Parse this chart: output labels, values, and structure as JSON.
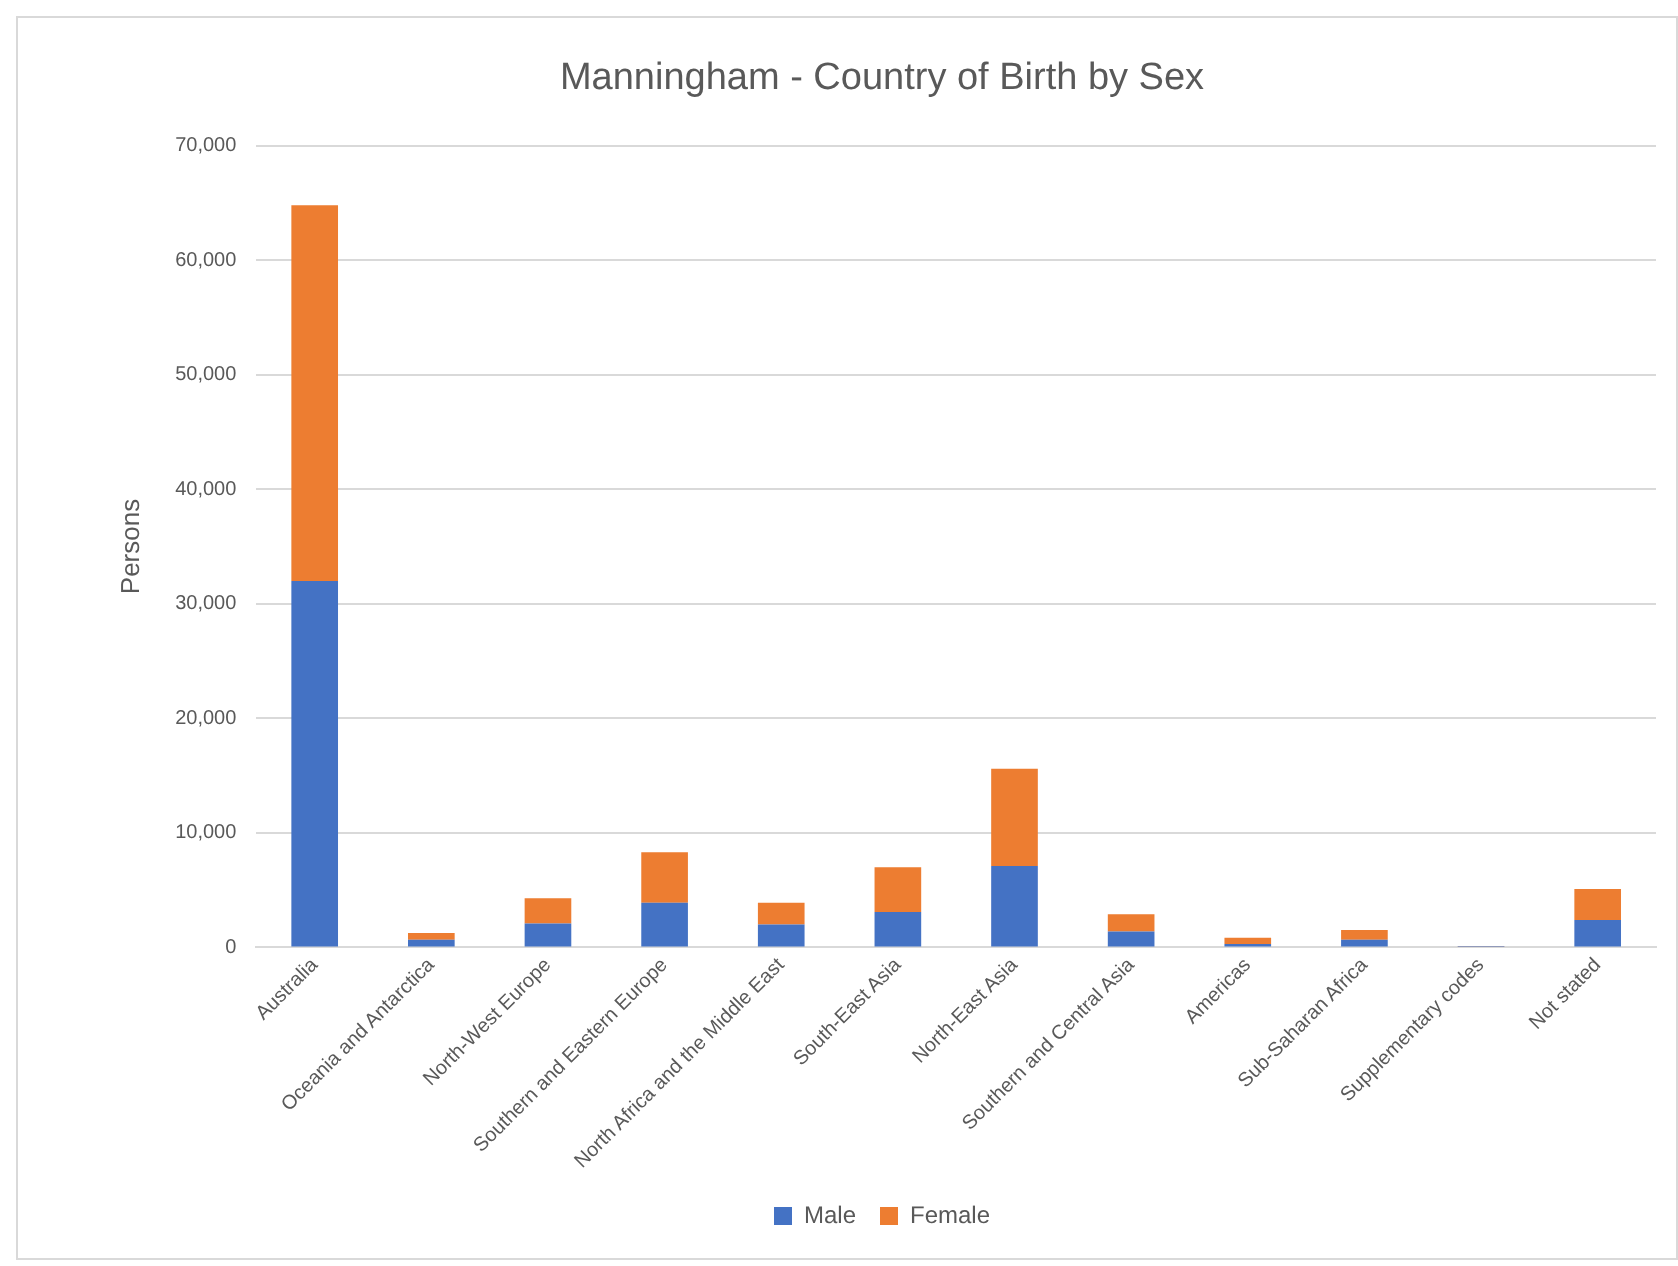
{
  "chart_data": {
    "type": "bar",
    "title": "Manningham - Country of Birth by Sex",
    "ylabel": "Persons",
    "stacked": true,
    "grid": "y",
    "legend": "bottom",
    "categories": [
      "Australia",
      "Oceania and Antarctica",
      "North-West Europe",
      "Southern and Eastern Europe",
      "North Africa and the Middle East",
      "South-East Asia",
      "North-East Asia",
      "Southern and Central Asia",
      "Americas",
      "Sub-Saharan Africa",
      "Supplementary codes",
      "Not stated"
    ],
    "series": [
      {
        "name": "Male",
        "color": "#4472c4",
        "values": [
          32000,
          670,
          2100,
          3900,
          2000,
          3100,
          7100,
          1400,
          300,
          670,
          30,
          2400
        ]
      },
      {
        "name": "Female",
        "color": "#ed7d31",
        "values": [
          32800,
          600,
          2200,
          4400,
          1900,
          3900,
          8500,
          1500,
          550,
          850,
          30,
          2700
        ]
      }
    ],
    "ylim": [
      0,
      70000
    ],
    "yticks": [
      {
        "value": 0,
        "label": "0"
      },
      {
        "value": 10000,
        "label": "10,000"
      },
      {
        "value": 20000,
        "label": "20,000"
      },
      {
        "value": 30000,
        "label": "30,000"
      },
      {
        "value": 40000,
        "label": "40,000"
      },
      {
        "value": 50000,
        "label": "50,000"
      },
      {
        "value": 60000,
        "label": "60,000"
      },
      {
        "value": 70000,
        "label": "70,000"
      }
    ]
  }
}
